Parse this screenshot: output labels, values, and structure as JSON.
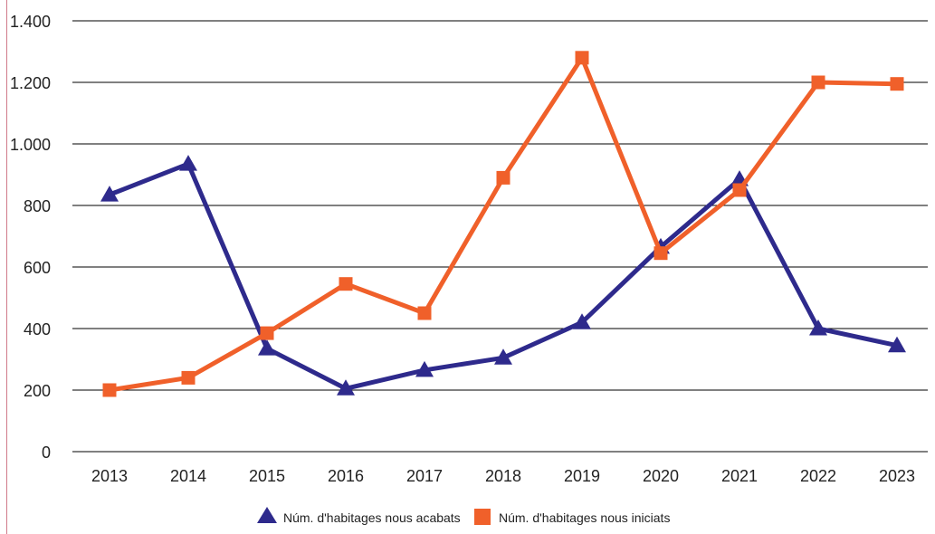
{
  "chart_data": {
    "type": "line",
    "categories": [
      "2013",
      "2014",
      "2015",
      "2016",
      "2017",
      "2018",
      "2019",
      "2020",
      "2021",
      "2022",
      "2023"
    ],
    "series": [
      {
        "name": "Núm. d'habitages nous acabats",
        "color": "#2e2a8c",
        "marker": "triangle",
        "values": [
          835,
          935,
          335,
          205,
          265,
          305,
          420,
          665,
          885,
          400,
          345
        ]
      },
      {
        "name": "Núm. d'habitages nous iniciats",
        "color": "#f0602a",
        "marker": "square",
        "values": [
          200,
          240,
          385,
          545,
          450,
          890,
          1280,
          645,
          850,
          1200,
          1195
        ]
      }
    ],
    "ylim": [
      0,
      1400
    ],
    "yticks": [
      0,
      200,
      400,
      600,
      800,
      1000,
      1200,
      1400
    ],
    "ytick_labels": [
      "0",
      "200",
      "400",
      "600",
      "800",
      "1.000",
      "1.200",
      "1.400"
    ],
    "grid": true,
    "legend_position": "bottom"
  },
  "colors": {
    "grid": "#000000",
    "left_rule": "#d07a8a"
  }
}
